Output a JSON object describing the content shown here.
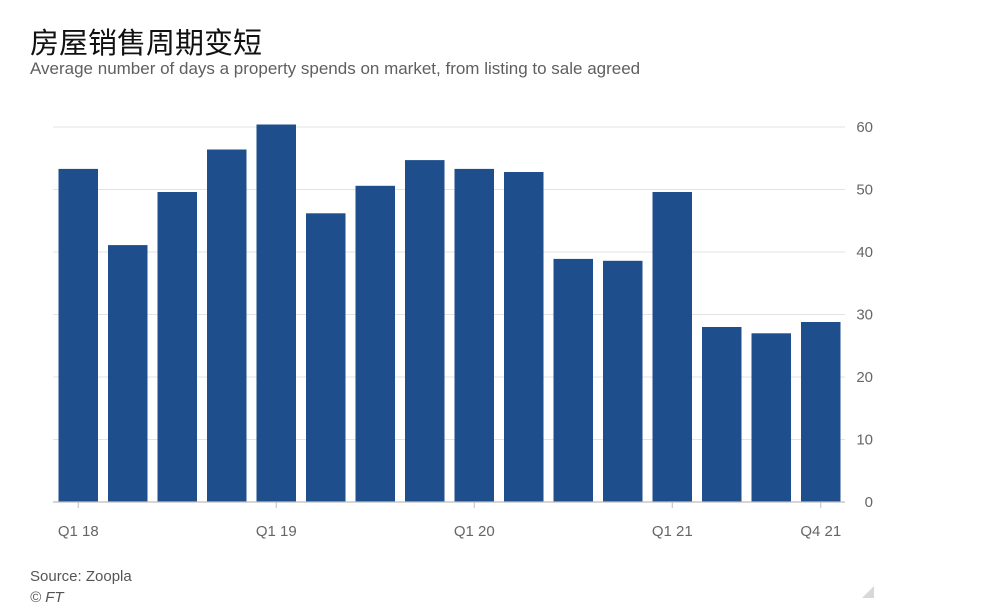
{
  "header": {
    "title": "房屋销售周期变短",
    "subtitle": "Average number of days a property spends on market, from listing to sale agreed"
  },
  "footer": {
    "source": "Source: Zoopla",
    "credit": "© FT"
  },
  "colors": {
    "bar": "#1f4e8c",
    "grid": "#e3e3e3",
    "axis": "#bdbdbd",
    "tick_text": "#666666"
  },
  "chart_data": {
    "type": "bar",
    "title": "房屋销售周期变短",
    "subtitle": "Average number of days a property spends on market, from listing to sale agreed",
    "xlabel": "",
    "ylabel": "",
    "categories": [
      "Q1 18",
      "Q2 18",
      "Q3 18",
      "Q4 18",
      "Q1 19",
      "Q2 19",
      "Q3 19",
      "Q4 19",
      "Q1 20",
      "Q2 20",
      "Q3 20",
      "Q4 20",
      "Q1 21",
      "Q2 21",
      "Q3 21",
      "Q4 21"
    ],
    "x_tick_labels": [
      "Q1 18",
      "",
      "",
      "",
      "Q1 19",
      "",
      "",
      "",
      "Q1 20",
      "",
      "",
      "",
      "Q1 21",
      "",
      "",
      "Q4 21"
    ],
    "values": [
      53.3,
      41.1,
      49.6,
      56.4,
      60.4,
      46.2,
      50.6,
      54.7,
      53.3,
      52.8,
      38.9,
      38.6,
      49.6,
      28.0,
      27.0,
      28.8
    ],
    "ylim": [
      0,
      60
    ],
    "y_ticks": [
      "0",
      "10",
      "20",
      "30",
      "40",
      "50",
      "60"
    ],
    "y_axis_side": "right",
    "grid": true,
    "legend": "none"
  }
}
